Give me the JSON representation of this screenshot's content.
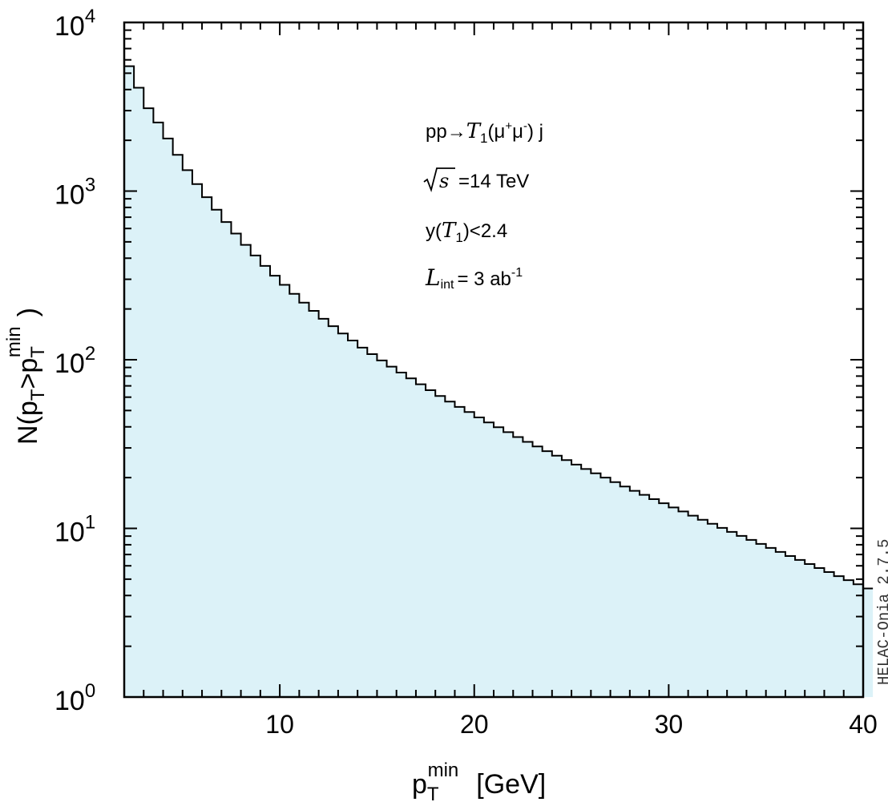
{
  "chart_data": {
    "type": "area",
    "step": true,
    "log_y": true,
    "xlim": [
      2,
      40
    ],
    "ylim": [
      1,
      10000
    ],
    "grid": false,
    "fill_color": "#dcf2f8",
    "line_color": "#000000",
    "x_tick_labels": [
      "10",
      "20",
      "30",
      "40"
    ],
    "y_tick_labels": [
      {
        "base": "10",
        "exp": "0"
      },
      {
        "base": "10",
        "exp": "1"
      },
      {
        "base": "10",
        "exp": "2"
      },
      {
        "base": "10",
        "exp": "3"
      },
      {
        "base": "10",
        "exp": "4"
      }
    ],
    "xlabel": {
      "base": "p",
      "sub": "T",
      "sup": "min",
      "unit": "[GeV]"
    },
    "ylabel": {
      "pre": "N(p",
      "sub1": "T",
      "mid": ">p",
      "sub2": "T",
      "sup": "min",
      "post": ")"
    },
    "annotations": {
      "process": {
        "pre": "pp→",
        "sym": "T",
        "sub": "1",
        "mid": "(μ",
        "sup1": "+",
        "mid2": "μ",
        "sup2": "-",
        "post": ") j"
      },
      "energy": {
        "sym": "s",
        "value": "=14 TeV"
      },
      "rapidity": {
        "pre": "y(",
        "sym": "T",
        "sub": "1",
        "post": ")<2.4"
      },
      "lumi": {
        "sym": "L",
        "sub": "int",
        "value": "=  3 ab",
        "sup": "-1"
      }
    },
    "watermark": "HELAC-Onia 2.7.5",
    "bins": {
      "x_start": 2,
      "width": 0.5,
      "y": [
        5500,
        4100,
        3100,
        2550,
        2050,
        1640,
        1330,
        1100,
        920,
        775,
        655,
        560,
        480,
        415,
        360,
        315,
        278,
        246,
        218,
        195,
        175,
        158,
        143,
        130,
        118,
        108,
        99,
        91,
        84,
        77.5,
        71.5,
        66,
        61,
        56.5,
        52.5,
        49,
        45.5,
        42.5,
        39.8,
        37.2,
        34.8,
        32.6,
        30.6,
        28.7,
        27.0,
        25.4,
        23.9,
        22.5,
        21.2,
        20.0,
        18.8,
        17.7,
        16.7,
        15.8,
        14.9,
        14.1,
        13.3,
        12.6,
        11.9,
        11.25,
        10.65,
        10.07,
        9.53,
        9.02,
        8.54,
        8.09,
        7.66,
        7.25,
        6.86,
        6.5,
        6.15,
        5.82,
        5.51,
        5.21,
        4.93,
        4.66,
        4.4
      ]
    }
  }
}
